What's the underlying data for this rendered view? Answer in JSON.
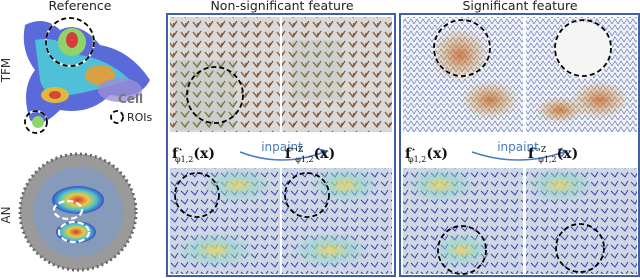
{
  "headers": {
    "reference": "Reference",
    "non_significant": "Non-significant feature",
    "significant": "Significant feature"
  },
  "rows": {
    "tfm": "TFM",
    "an": "AN"
  },
  "legend": {
    "cell": "Cell",
    "rois": "ROIs"
  },
  "arrows": [
    "inpaint",
    "inpaint"
  ],
  "formulas": [
    {
      "base": "f",
      "sup": "⋆",
      "sub": "φ1,2",
      "arg": "(x)"
    },
    {
      "base": "f",
      "sup": "¬Z",
      "sub": "φ1,2",
      "arg": "(x)"
    },
    {
      "base": "f",
      "sup": "⋆",
      "sub": "φ1,2",
      "arg": "(x)"
    },
    {
      "base": "f",
      "sup": "¬Z",
      "sub": "φ1,2",
      "arg": "(x)"
    }
  ]
}
